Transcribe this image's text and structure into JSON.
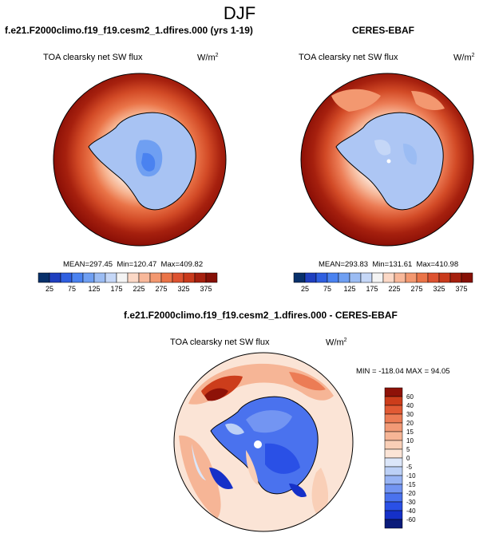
{
  "figure": {
    "title": "DJF"
  },
  "panels": [
    {
      "heading": "f.e21.F2000climo.f19_f19.cesm2_1.dfires.000 (yrs 1-19)",
      "variable": "TOA clearsky net SW flux",
      "units": "W/m",
      "units_sup": "2",
      "stats": {
        "mean_label": "MEAN=",
        "mean": "297.45",
        "min_label": "Min=",
        "min": "120.47",
        "max_label": "Max=",
        "max": "409.82"
      }
    },
    {
      "heading": "CERES-EBAF",
      "variable": "TOA clearsky net SW flux",
      "units": "W/m",
      "units_sup": "2",
      "stats": {
        "mean_label": "MEAN=",
        "mean": "293.83",
        "min_label": "Min=",
        "min": "131.61",
        "max_label": "Max=",
        "max": "410.98"
      }
    },
    {
      "heading": "f.e21.F2000climo.f19_f19.cesm2_1.dfires.000 - CERES-EBAF",
      "variable": "TOA clearsky net SW flux",
      "units": "W/m",
      "units_sup": "2",
      "stats_text": "MIN = -118.04 MAX =  94.05"
    }
  ],
  "colorbars": {
    "abs": {
      "colors": [
        "#08306b",
        "#1f3fbf",
        "#2f5fe0",
        "#4a82f0",
        "#6f9ff2",
        "#9bbcf3",
        "#c5d7f7",
        "#f4f4f4",
        "#fbd8c6",
        "#f8b89a",
        "#f39870",
        "#ea7448",
        "#dd5230",
        "#c93a1c",
        "#a6200e",
        "#861006"
      ],
      "ticks": [
        "25",
        "75",
        "125",
        "175",
        "225",
        "275",
        "325",
        "375"
      ]
    },
    "diff": {
      "colors": [
        "#0a1b7a",
        "#1530c8",
        "#2a50e6",
        "#4a72ee",
        "#7395f2",
        "#98b4f4",
        "#bcd0f6",
        "#dbe6f9",
        "#fbe4d6",
        "#f9cfb7",
        "#f6b596",
        "#f29a76",
        "#ec7c55",
        "#e15a34",
        "#cc3d1b",
        "#8e1208"
      ],
      "ticks": [
        "-60",
        "-40",
        "-30",
        "-20",
        "-15",
        "-10",
        "-5",
        "0",
        "5",
        "10",
        "15",
        "20",
        "30",
        "40",
        "60"
      ]
    }
  },
  "colors": {
    "ocean_far": "#8b0f06",
    "ice_model": "#a8c3f3",
    "ice_obs": "#adc6f4"
  }
}
